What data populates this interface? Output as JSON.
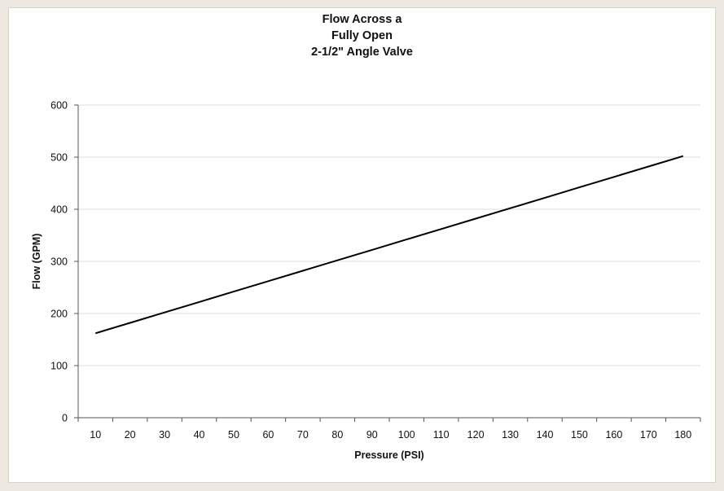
{
  "chart_data": {
    "type": "line",
    "title_lines": [
      "Flow Across a",
      "Fully Open",
      "2-1/2\" Angle Valve"
    ],
    "xlabel": "Pressure (PSI)",
    "ylabel": "Flow (GPM)",
    "x": [
      10,
      20,
      30,
      40,
      50,
      60,
      70,
      80,
      90,
      100,
      110,
      120,
      130,
      140,
      150,
      160,
      170,
      180
    ],
    "series": [
      {
        "values": [
          162,
          182,
          202,
          222,
          242,
          262,
          282,
          302,
          322,
          342,
          362,
          382,
          402,
          422,
          442,
          462,
          482,
          502
        ]
      }
    ],
    "ylim": [
      0,
      600
    ],
    "yticks": [
      0,
      100,
      200,
      300,
      400,
      500,
      600
    ],
    "grid": "horizontal",
    "legend": "none",
    "line_color": "#000000",
    "grid_color": "#dcdcdc"
  }
}
